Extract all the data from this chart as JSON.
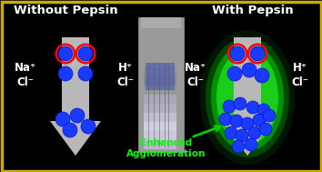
{
  "background_color": "#000000",
  "border_color": "#ccaa00",
  "title_left": "Without Pepsin",
  "title_right": "With Pepsin",
  "label_na": "Na⁺",
  "label_cl": "Cl⁻",
  "label_h": "H⁺",
  "label_cl2": "Cl⁻",
  "text_enhanced_1": "Enhanced",
  "text_enhanced_2": "Agglomeration",
  "arrow_color": "#00CC00",
  "nanoparticle_color": "#1a3aff",
  "ring_color": "#FF0000",
  "arrow_gray": "#b8b8b8",
  "text_color": "#ffffff",
  "green_text_color": "#00FF00",
  "glow_inner": "#33ff33",
  "glow_outer": "#00bb00",
  "tube_bg": "#888888",
  "tube_liquid_top": "#aaaacc",
  "tube_liquid_bottom": "#3344aa",
  "figw": 3.54,
  "figh": 1.89,
  "dpi": 100
}
